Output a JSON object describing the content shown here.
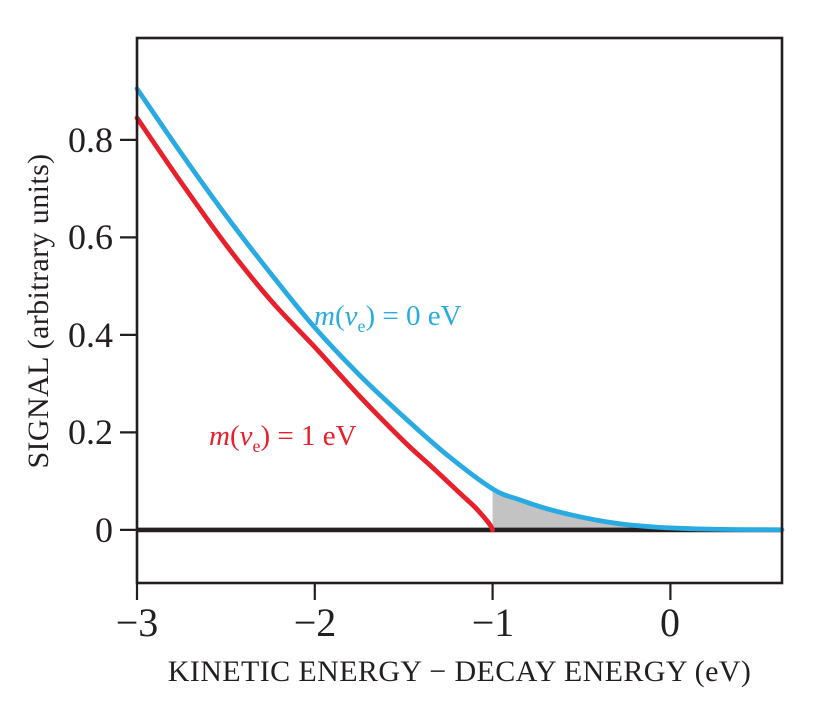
{
  "figure": {
    "ylabel": "SIGNAL (arbitrary units)",
    "xlabel": "KINETIC ENERGY − DECAY ENERGY (eV)",
    "y_tick_labels": [
      "0.8",
      "0.6",
      "0.4",
      "0.2",
      "0"
    ],
    "x_tick_labels": [
      "−3",
      "−2",
      "−1",
      "0"
    ],
    "curve_labels": {
      "blue": {
        "var": "m",
        "open": "(",
        "nu": "ν",
        "sub": "e",
        "rest": ") = 0 eV",
        "text": "m(νe) = 0 eV"
      },
      "red": {
        "var": "m",
        "open": "(",
        "nu": "ν",
        "sub": "e",
        "rest": ") = 1 eV",
        "text": "m(νe) = 1 eV"
      }
    },
    "colors": {
      "blue": "#29abe2",
      "red": "#e8202c",
      "gray": "#c3c3c3",
      "axis": "#231f20"
    }
  },
  "chart_data": {
    "type": "line",
    "title": "",
    "xlabel": "KINETIC ENERGY − DECAY ENERGY (eV)",
    "ylabel": "SIGNAL (arbitrary units)",
    "xlim": [
      -3,
      0.628
    ],
    "ylim": [
      -0.109,
      1.009
    ],
    "x_tick_values": [
      -3,
      -2,
      -1,
      0
    ],
    "y_tick_values": [
      0,
      0.2,
      0.4,
      0.6,
      0.8
    ],
    "grid": false,
    "legend_position": "inline-labels",
    "series": [
      {
        "name": "m(νe) = 0 eV",
        "color": "#29abe2",
        "x": [
          -3,
          -2.75,
          -2.5,
          -2.25,
          -2,
          -1.75,
          -1.5,
          -1.25,
          -1,
          -0.85,
          -0.7,
          -0.55,
          -0.4,
          -0.25,
          -0.1,
          0,
          0.15,
          0.3,
          0.45,
          0.628
        ],
        "y": [
          0.905,
          0.772,
          0.645,
          0.527,
          0.415,
          0.318,
          0.232,
          0.152,
          0.084,
          0.062,
          0.044,
          0.03,
          0.019,
          0.011,
          0.006,
          0.004,
          0.002,
          0.001,
          0.0005,
          0.0002
        ]
      },
      {
        "name": "m(νe) = 1 eV",
        "color": "#e8202c",
        "x": [
          -3,
          -2.75,
          -2.5,
          -2.25,
          -2,
          -1.75,
          -1.5,
          -1.35,
          -1.25,
          -1.15,
          -1.1,
          -1.06,
          -1.03,
          -1.01,
          -1
        ],
        "y": [
          0.845,
          0.712,
          0.585,
          0.472,
          0.375,
          0.275,
          0.182,
          0.132,
          0.098,
          0.064,
          0.047,
          0.031,
          0.018,
          0.008,
          0
        ]
      }
    ],
    "shaded_area": {
      "color": "#c3c3c3",
      "between": "m(νe) = 0 eV curve and signal = 0 baseline",
      "x_range": [
        -1,
        0.45
      ]
    },
    "baseline": {
      "y": 0,
      "color": "#231f20"
    }
  }
}
